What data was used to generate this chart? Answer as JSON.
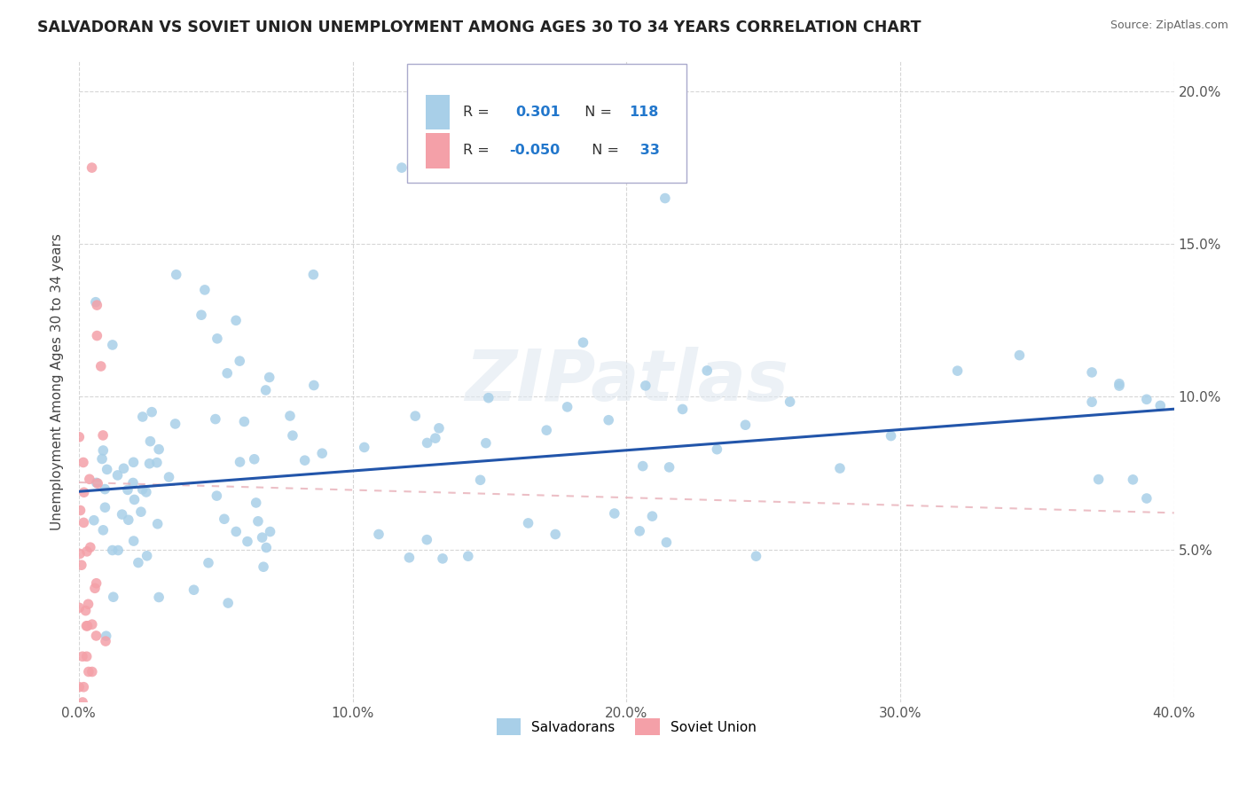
{
  "title": "SALVADORAN VS SOVIET UNION UNEMPLOYMENT AMONG AGES 30 TO 34 YEARS CORRELATION CHART",
  "source": "Source: ZipAtlas.com",
  "ylabel": "Unemployment Among Ages 30 to 34 years",
  "watermark": "ZIPatlas",
  "xmin": 0.0,
  "xmax": 0.4,
  "ymin": 0.0,
  "ymax": 0.21,
  "yticks": [
    0.05,
    0.1,
    0.15,
    0.2
  ],
  "xticks": [
    0.0,
    0.1,
    0.2,
    0.3,
    0.4
  ],
  "color_salvadoran": "#a8cfe8",
  "color_soviet": "#f4a0a8",
  "color_trend_salvadoran": "#2255aa",
  "color_trend_soviet": "#e8b0b8",
  "background_color": "#ffffff",
  "grid_color": "#cccccc",
  "trend_sal_x0": 0.0,
  "trend_sal_y0": 0.069,
  "trend_sal_x1": 0.4,
  "trend_sal_y1": 0.096,
  "trend_sov_x0": 0.0,
  "trend_sov_y0": 0.072,
  "trend_sov_x1": 0.4,
  "trend_sov_y1": 0.062
}
